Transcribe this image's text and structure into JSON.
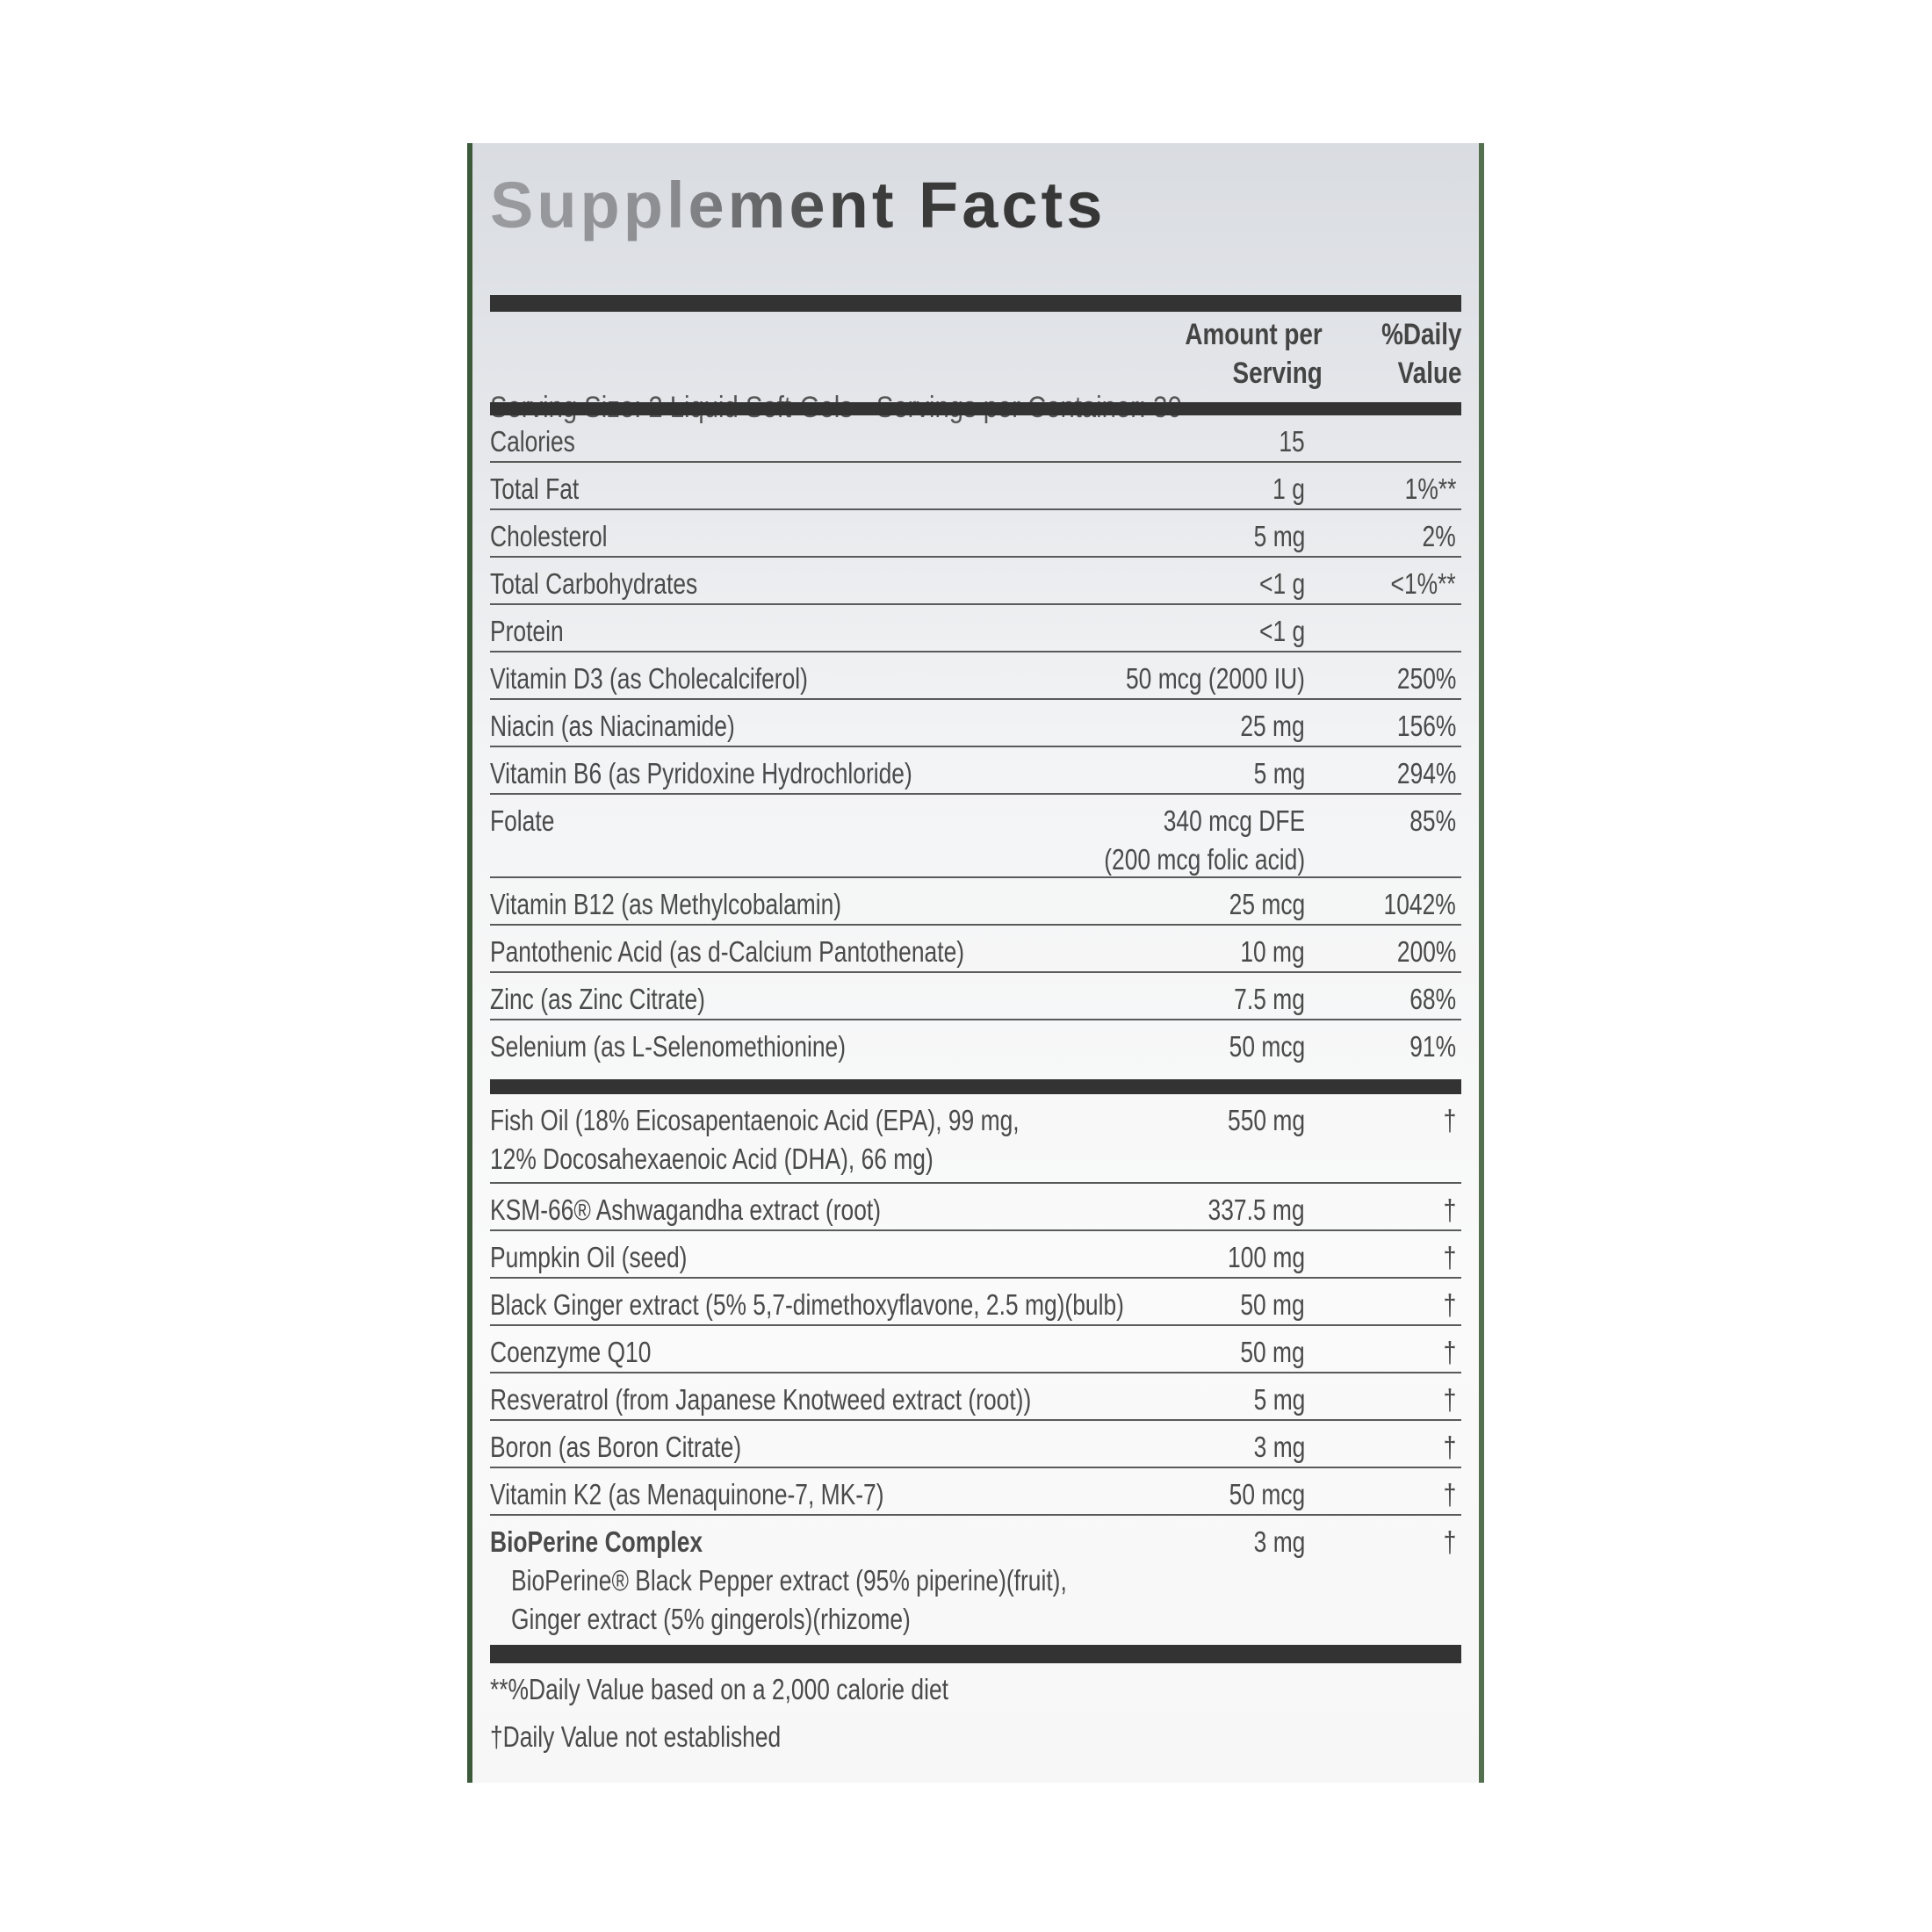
{
  "title": "Supplement Facts",
  "serving_size": "Serving Size: 2 Liquid Soft-Gels",
  "servings_per_container": "Servings per Container: 30",
  "header": {
    "amount_line1": "Amount per",
    "amount_line2": "Serving",
    "dv_line1": "%Daily",
    "dv_line2": "Value"
  },
  "nutrients": [
    {
      "name": "Calories",
      "amount": "15",
      "dv": ""
    },
    {
      "name": "Total Fat",
      "amount": "1 g",
      "dv": "1%**"
    },
    {
      "name": "Cholesterol",
      "amount": "5 mg",
      "dv": "2%"
    },
    {
      "name": "Total Carbohydrates",
      "amount": "<1 g",
      "dv": "<1%**"
    },
    {
      "name": "Protein",
      "amount": "<1 g",
      "dv": ""
    },
    {
      "name": "Vitamin D3 (as Cholecalciferol)",
      "amount": "50 mcg (2000 IU)",
      "dv": "250%"
    },
    {
      "name": "Niacin (as Niacinamide)",
      "amount": "25 mg",
      "dv": "156%"
    },
    {
      "name": "Vitamin B6 (as Pyridoxine Hydrochloride)",
      "amount": "5 mg",
      "dv": "294%"
    },
    {
      "name": "Folate",
      "amount": "340 mcg DFE",
      "amount2": "(200 mcg folic acid)",
      "dv": "85%"
    },
    {
      "name": "Vitamin B12 (as Methylcobalamin)",
      "amount": "25 mcg",
      "dv": "1042%"
    },
    {
      "name": "Pantothenic Acid (as d-Calcium Pantothenate)",
      "amount": "10 mg",
      "dv": "200%"
    },
    {
      "name": "Zinc (as Zinc Citrate)",
      "amount": "7.5 mg",
      "dv": "68%"
    },
    {
      "name": "Selenium (as L-Selenomethionine)",
      "amount": "50 mcg",
      "dv": "91%"
    }
  ],
  "ingredients": [
    {
      "name": "Fish Oil (18% Eicosapentaenoic Acid (EPA), 99 mg,",
      "name2": "12% Docosahexaenoic Acid (DHA), 66 mg)",
      "amount": "550 mg",
      "dv": "†"
    },
    {
      "name": "KSM-66® Ashwagandha extract (root)",
      "amount": "337.5 mg",
      "dv": "†"
    },
    {
      "name": "Pumpkin Oil (seed)",
      "amount": "100 mg",
      "dv": "†"
    },
    {
      "name": "Black Ginger extract (5% 5,7-dimethoxyflavone, 2.5 mg)(bulb)",
      "amount": "50 mg",
      "dv": "†"
    },
    {
      "name": "Coenzyme Q10",
      "amount": "50 mg",
      "dv": "†"
    },
    {
      "name": "Resveratrol (from Japanese Knotweed extract (root))",
      "amount": "5 mg",
      "dv": "†"
    },
    {
      "name": "Boron (as Boron Citrate)",
      "amount": "3 mg",
      "dv": "†"
    },
    {
      "name": "Vitamin K2 (as Menaquinone-7, MK-7)",
      "amount": "50 mcg",
      "dv": "†"
    },
    {
      "name": "BioPerine Complex",
      "sub1": "BioPerine® Black Pepper extract (95% piperine)(fruit),",
      "sub2": "Ginger extract (5% gingerols)(rhizome)",
      "amount": "3 mg",
      "dv": "†"
    }
  ],
  "footnotes": [
    "**%Daily Value based on a 2,000 calorie diet",
    "†Daily Value not established"
  ]
}
